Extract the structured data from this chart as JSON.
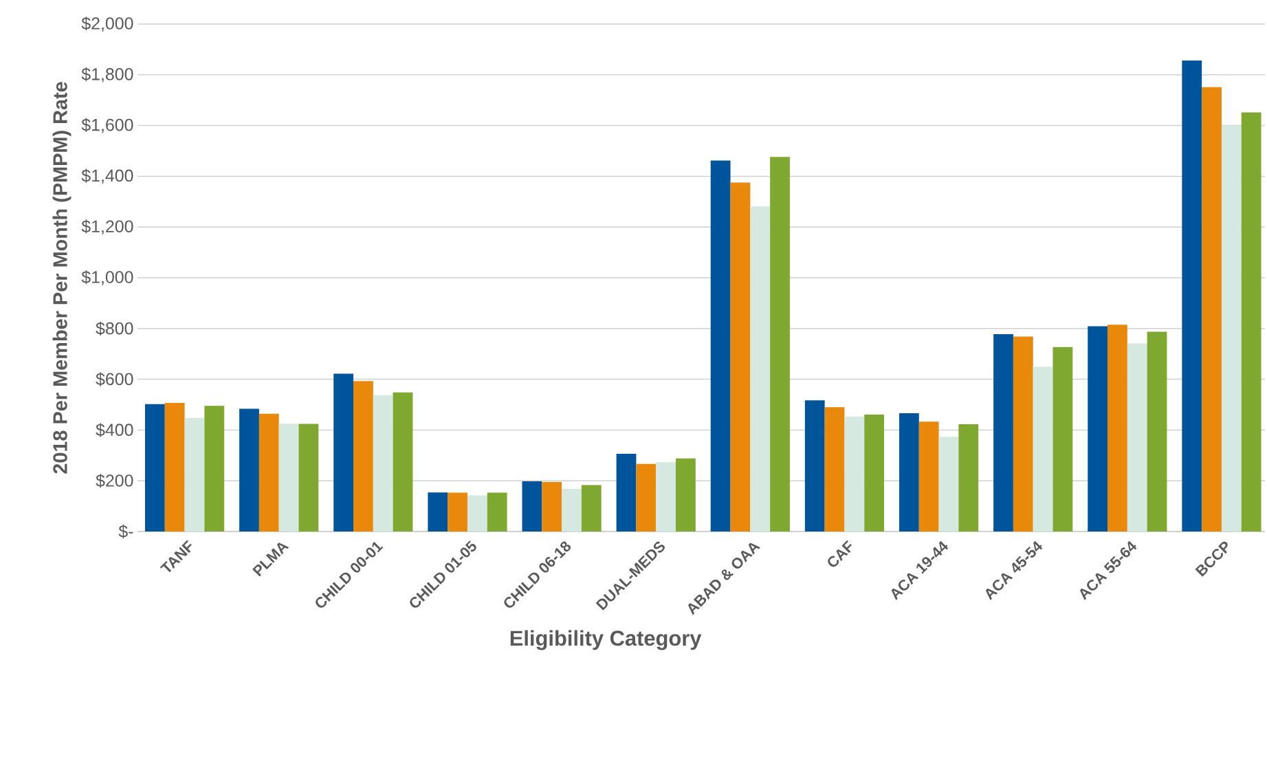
{
  "chart_data": {
    "type": "bar",
    "xlabel": "Eligibility Category",
    "ylabel": "2018 Per Member Per Month (PMPM) Rate",
    "categories": [
      "TANF",
      "PLMA",
      "CHILD 00-01",
      "CHILD 01-05",
      "CHILD 06-18",
      "DUAL-MEDS",
      "ABAD & OAA",
      "CAF",
      "ACA 19-44",
      "ACA 45-54",
      "ACA 55-64",
      "BCCP"
    ],
    "series": [
      {
        "color": "#00559a",
        "values": [
          502,
          484,
          622,
          154,
          198,
          306,
          1462,
          517,
          466,
          778,
          809,
          1856
        ]
      },
      {
        "color": "#e8890c",
        "values": [
          507,
          464,
          593,
          153,
          195,
          266,
          1375,
          490,
          433,
          768,
          815,
          1751
        ]
      },
      {
        "color": "#d6e9e0",
        "values": [
          448,
          425,
          537,
          142,
          168,
          273,
          1281,
          453,
          373,
          649,
          741,
          1600
        ]
      },
      {
        "color": "#7ea830",
        "values": [
          495,
          424,
          548,
          153,
          183,
          288,
          1476,
          461,
          423,
          727,
          787,
          1652
        ]
      }
    ],
    "ylim": [
      0,
      2000
    ],
    "yticks": [
      {
        "value": 0,
        "label": "$-"
      },
      {
        "value": 200,
        "label": "$200"
      },
      {
        "value": 400,
        "label": "$400"
      },
      {
        "value": 600,
        "label": "$600"
      },
      {
        "value": 800,
        "label": "$800"
      },
      {
        "value": 1000,
        "label": "$1,000"
      },
      {
        "value": 1200,
        "label": "$1,200"
      },
      {
        "value": 1400,
        "label": "$1,400"
      },
      {
        "value": 1600,
        "label": "$1,600"
      },
      {
        "value": 1800,
        "label": "$1,800"
      },
      {
        "value": 2000,
        "label": "$2,000"
      }
    ],
    "grid": "y",
    "legend": false
  }
}
